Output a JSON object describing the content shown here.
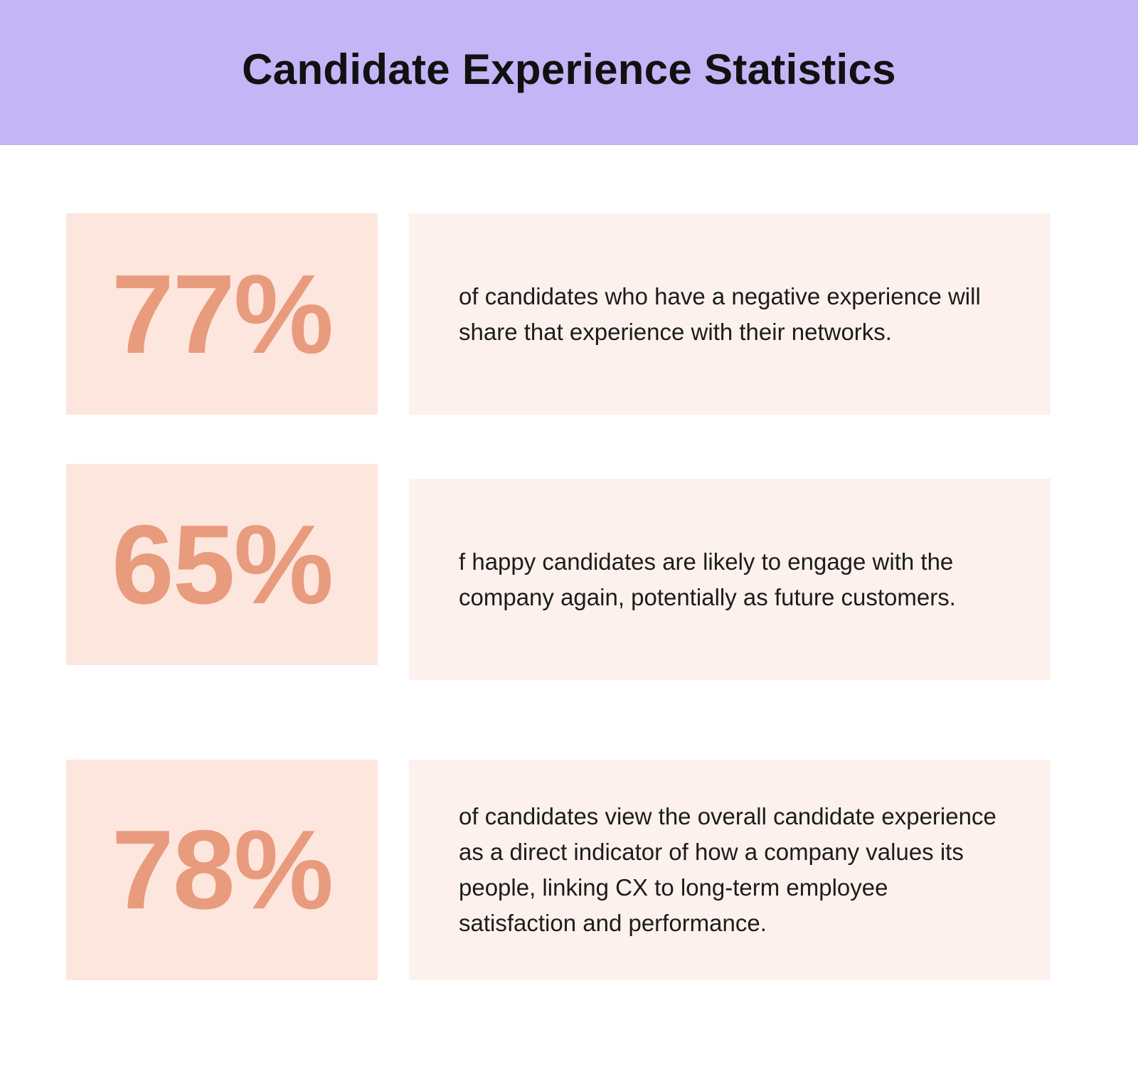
{
  "header": {
    "title": "Candidate Experience Statistics",
    "bg_color": "#c4b5f7"
  },
  "colors": {
    "stat_box_bg": "#fde6dd",
    "stat_text": "#e99b7d",
    "desc_box_bg": "#fdf1ed"
  },
  "stats": [
    {
      "value": "77%",
      "description": "of candidates who have a negative experience will share that experience with their networks."
    },
    {
      "value": "65%",
      "description": "f happy candidates are likely to engage with the company again, potentially as future customers."
    },
    {
      "value": "78%",
      "description": "of candidates view the overall candidate experience as a direct indicator of how a company values its people, linking CX to long-term employee satisfaction and performance."
    }
  ]
}
